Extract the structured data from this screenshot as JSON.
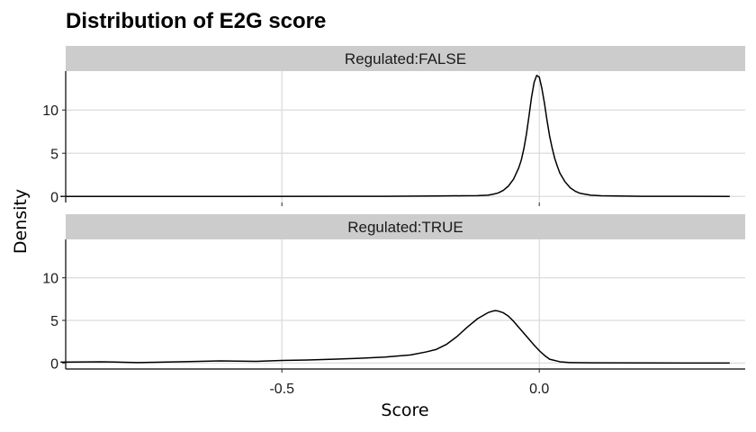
{
  "chart_data": {
    "type": "line",
    "title": "Distribution of E2G score",
    "xlabel": "Score",
    "ylabel": "Density",
    "xlim": [
      -0.92,
      0.4
    ],
    "ylim": [
      -0.7,
      14.5
    ],
    "xticks": [
      -0.5,
      0.0
    ],
    "xtick_labels": [
      "-0.5",
      "0.0"
    ],
    "yticks": [
      0,
      5,
      10
    ],
    "ytick_labels": [
      "0",
      "5",
      "10"
    ],
    "grid": true,
    "legend": "none",
    "panels": [
      {
        "strip_label": "Regulated:FALSE",
        "x": [
          -0.93,
          -0.6,
          -0.3,
          -0.2,
          -0.15,
          -0.12,
          -0.1,
          -0.09,
          -0.08,
          -0.07,
          -0.06,
          -0.05,
          -0.04,
          -0.035,
          -0.03,
          -0.025,
          -0.02,
          -0.015,
          -0.01,
          -0.005,
          0.0,
          0.005,
          0.01,
          0.015,
          0.02,
          0.025,
          0.03,
          0.035,
          0.04,
          0.05,
          0.06,
          0.07,
          0.08,
          0.1,
          0.12,
          0.15,
          0.2,
          0.3,
          0.37
        ],
        "y": [
          0.0,
          0.0,
          0.02,
          0.05,
          0.08,
          0.1,
          0.15,
          0.25,
          0.4,
          0.7,
          1.2,
          2.0,
          3.3,
          4.2,
          5.5,
          7.2,
          9.3,
          11.5,
          13.2,
          14.0,
          13.8,
          12.5,
          10.8,
          8.8,
          7.0,
          5.6,
          4.4,
          3.5,
          2.7,
          1.7,
          1.0,
          0.6,
          0.35,
          0.15,
          0.08,
          0.05,
          0.02,
          0.01,
          0.0
        ]
      },
      {
        "strip_label": "Regulated:TRUE",
        "x": [
          -0.93,
          -0.85,
          -0.78,
          -0.7,
          -0.62,
          -0.55,
          -0.5,
          -0.45,
          -0.4,
          -0.35,
          -0.3,
          -0.25,
          -0.22,
          -0.2,
          -0.18,
          -0.16,
          -0.14,
          -0.12,
          -0.1,
          -0.09,
          -0.085,
          -0.08,
          -0.075,
          -0.07,
          -0.06,
          -0.05,
          -0.04,
          -0.03,
          -0.02,
          -0.01,
          0.0,
          0.01,
          0.02,
          0.04,
          0.06,
          0.1,
          0.2,
          0.3,
          0.37
        ],
        "y": [
          0.1,
          0.15,
          0.05,
          0.15,
          0.25,
          0.2,
          0.3,
          0.35,
          0.45,
          0.55,
          0.7,
          0.95,
          1.3,
          1.6,
          2.2,
          3.1,
          4.2,
          5.2,
          5.9,
          6.1,
          6.15,
          6.1,
          6.0,
          5.9,
          5.5,
          4.9,
          4.2,
          3.5,
          2.8,
          2.1,
          1.45,
          0.9,
          0.45,
          0.15,
          0.05,
          0.02,
          0.01,
          0.0,
          0.0
        ]
      }
    ]
  }
}
